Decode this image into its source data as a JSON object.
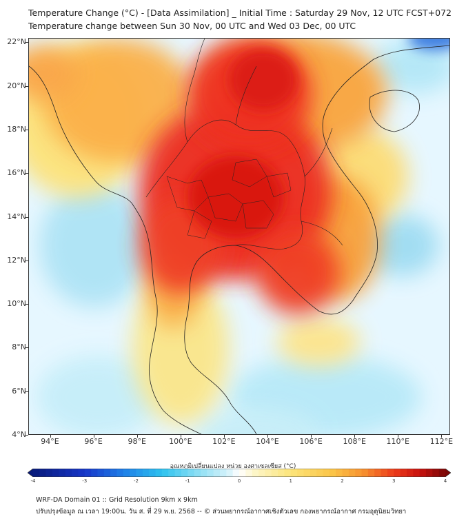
{
  "header": {
    "title_line1": "Temperature Change (°C) - [Data Assimilation] _ Initial Time : Saturday 29 Nov, 12 UTC FCST+072",
    "title_line2": "Temperature change between Sun 30 Nov, 00 UTC and Wed 03 Dec, 00 UTC"
  },
  "map": {
    "lat_labels": [
      "22°N",
      "20°N",
      "18°N",
      "16°N",
      "14°N",
      "12°N",
      "10°N",
      "8°N",
      "6°N",
      "4°N"
    ],
    "lon_labels": [
      "94°E",
      "96°E",
      "98°E",
      "100°E",
      "102°E",
      "104°E",
      "106°E",
      "108°E",
      "110°E",
      "112°E"
    ],
    "lat_range": [
      4,
      22.2
    ],
    "lon_range": [
      93,
      112.4
    ],
    "ocean_color": "#dff6ff",
    "land_color": "#fbe9a0",
    "coast_color": "#222222"
  },
  "colorbar": {
    "label": "อุณหภูมิเปลี่ยนแปลง หน่วย องศาเซลเซียส (°C)",
    "min": -4,
    "max": 4,
    "tick_labels": [
      "-4",
      "-3",
      "-2",
      "-1",
      "0",
      "1",
      "2",
      "3",
      "4"
    ]
  },
  "footer": {
    "line1": "WRF-DA Domain 01 :: Grid Resolution 9km x 9km",
    "line2": "ปรับปรุงข้อมูล ณ เวลา 19:00น. วัน ส. ที่ 29 พ.ย. 2568 -- © ส่วนพยากรณ์อากาศเชิงตัวเลข กองพยากรณ์อากาศ กรมอุตุนิยมวิทยา"
  }
}
